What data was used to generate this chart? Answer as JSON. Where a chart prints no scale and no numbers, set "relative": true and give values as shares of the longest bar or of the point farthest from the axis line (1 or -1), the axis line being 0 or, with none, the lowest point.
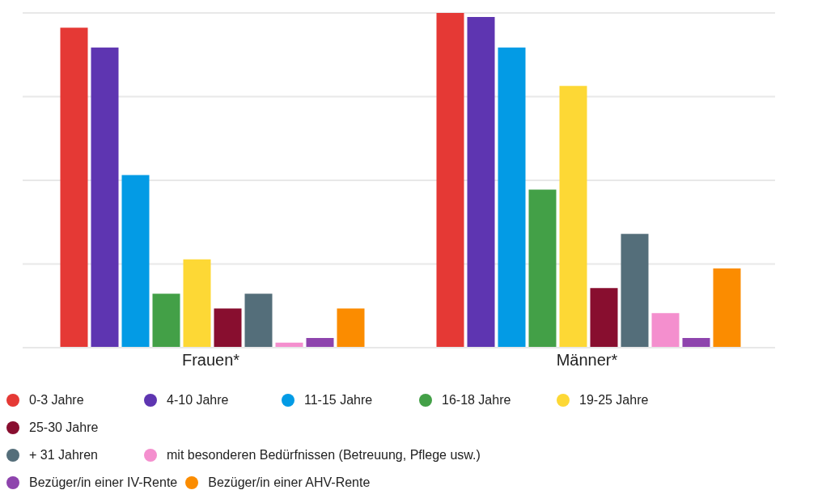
{
  "chart_data": {
    "type": "bar",
    "relative": true,
    "grid": "y",
    "legend": "bottom",
    "categories": [
      "Frauen*",
      "Männer*"
    ],
    "series": [
      {
        "name": "0-3 Jahre",
        "color": "#e53935",
        "values": [
          0.956,
          1
        ]
      },
      {
        "name": "4-10 Jahre",
        "color": "#5e35b1",
        "values": [
          0.897,
          0.988
        ]
      },
      {
        "name": "11-15 Jahre",
        "color": "#039be5",
        "values": [
          0.516,
          0.897
        ]
      },
      {
        "name": "16-18 Jahre",
        "color": "#43a047",
        "values": [
          0.161,
          0.472
        ]
      },
      {
        "name": "19-25 Jahre",
        "color": "#fdd835",
        "values": [
          0.264,
          0.782
        ]
      },
      {
        "name": "25-30 Jahre",
        "color": "#880e2f",
        "values": [
          0.117,
          0.178
        ]
      },
      {
        "name": "+ 31 Jahren",
        "color": "#546e7a",
        "values": [
          0.161,
          0.34
        ]
      },
      {
        "name": "mit besonderen Bedürfnissen (Betreuung, Pflege usw.)",
        "color": "#f48fce",
        "values": [
          0.015,
          0.103
        ]
      },
      {
        "name": "Bezüger/in einer IV-Rente",
        "color": "#8e44ad",
        "values": [
          0.029,
          0.029
        ]
      },
      {
        "name": "Bezüger/in einer AHV-Rente",
        "color": "#fb8c00",
        "values": [
          0.117,
          0.237
        ]
      }
    ]
  }
}
